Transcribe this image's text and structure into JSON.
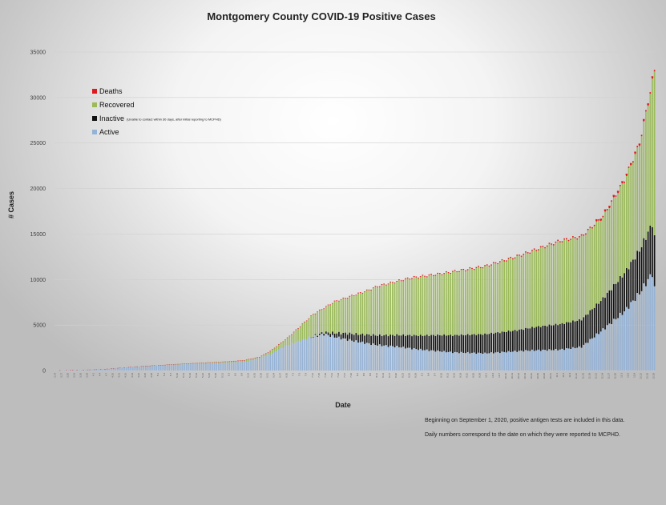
{
  "chart_data": {
    "type": "bar",
    "stacked": true,
    "title": "Montgomery County COVID-19 Positive Cases",
    "xlabel": "Date",
    "ylabel": "# Cases",
    "ylim": [
      0,
      35000
    ],
    "yticks": [
      0,
      5000,
      10000,
      15000,
      20000,
      25000,
      30000,
      35000
    ],
    "grid": true,
    "legend_position": "top-left",
    "n_bars": 280,
    "x_start_date": "2020-03-14",
    "x_tick_step_days": 3,
    "series": [
      {
        "name": "Deaths",
        "color": "#e0181f",
        "note": ""
      },
      {
        "name": "Recovered",
        "color": "#9bbb59",
        "note": ""
      },
      {
        "name": "Inactive",
        "color": "#111111",
        "note": "(Unable to contact within 30 days, after initial reporting to MCPHD)"
      },
      {
        "name": "Active",
        "color": "#95b3d7",
        "note": ""
      }
    ],
    "totals_keypoints": [
      [
        0,
        10
      ],
      [
        20,
        120
      ],
      [
        40,
        480
      ],
      [
        60,
        760
      ],
      [
        80,
        1000
      ],
      [
        88,
        1150
      ],
      [
        95,
        1500
      ],
      [
        100,
        2150
      ],
      [
        108,
        3600
      ],
      [
        120,
        6200
      ],
      [
        130,
        7600
      ],
      [
        145,
        8800
      ],
      [
        150,
        9300
      ],
      [
        165,
        10200
      ],
      [
        180,
        10700
      ],
      [
        200,
        11500
      ],
      [
        215,
        12600
      ],
      [
        235,
        14300
      ],
      [
        245,
        14800
      ],
      [
        255,
        17000
      ],
      [
        265,
        21000
      ],
      [
        272,
        25000
      ],
      [
        279,
        33000
      ]
    ],
    "active_keypoints": [
      [
        0,
        10
      ],
      [
        20,
        120
      ],
      [
        40,
        470
      ],
      [
        60,
        700
      ],
      [
        80,
        860
      ],
      [
        90,
        1000
      ],
      [
        100,
        1800
      ],
      [
        108,
        2800
      ],
      [
        118,
        3600
      ],
      [
        125,
        4000
      ],
      [
        130,
        3700
      ],
      [
        140,
        3200
      ],
      [
        150,
        2800
      ],
      [
        160,
        2600
      ],
      [
        170,
        2300
      ],
      [
        185,
        2000
      ],
      [
        200,
        1900
      ],
      [
        220,
        2200
      ],
      [
        235,
        2300
      ],
      [
        245,
        2600
      ],
      [
        255,
        4500
      ],
      [
        265,
        6500
      ],
      [
        272,
        8500
      ],
      [
        278,
        10700
      ],
      [
        279,
        9000
      ]
    ],
    "inactive_keypoints": [
      [
        0,
        0
      ],
      [
        118,
        0
      ],
      [
        125,
        200
      ],
      [
        135,
        650
      ],
      [
        145,
        950
      ],
      [
        160,
        1300
      ],
      [
        180,
        1800
      ],
      [
        200,
        2100
      ],
      [
        215,
        2300
      ],
      [
        225,
        2600
      ],
      [
        235,
        2800
      ],
      [
        245,
        3000
      ],
      [
        255,
        3400
      ],
      [
        265,
        4200
      ],
      [
        272,
        4700
      ],
      [
        279,
        5600
      ]
    ],
    "deaths_keypoints": [
      [
        0,
        0
      ],
      [
        40,
        20
      ],
      [
        80,
        40
      ],
      [
        120,
        60
      ],
      [
        160,
        90
      ],
      [
        200,
        110
      ],
      [
        240,
        130
      ],
      [
        279,
        160
      ]
    ]
  },
  "notes": [
    "Beginning on September 1, 2020, positive antigen tests are included in this data.",
    "Daily numbers correspond to the date on which they were reported to MCPHD."
  ]
}
